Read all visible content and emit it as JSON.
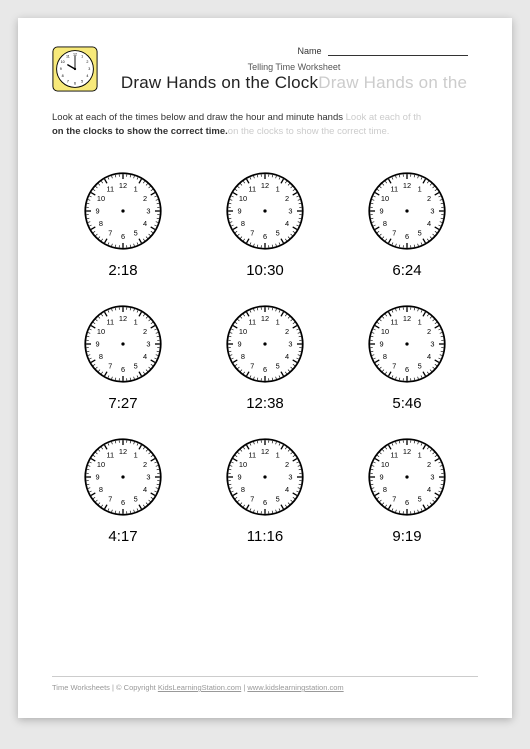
{
  "header": {
    "name_label": "Name",
    "subtitle": "Telling Time Worksheet",
    "title_main": "Draw Hands on the Clock",
    "title_ghost": "Draw Hands on the "
  },
  "logo_clock": {
    "bg_color": "#f7e97a",
    "border_color": "#000000",
    "face_color": "#ffffff",
    "hour": 10,
    "minute": 0
  },
  "instructions": {
    "line1_main": "Look at each of the times below and draw the hour and minute hands ",
    "line1_ghost": "Look at each of th",
    "line2_bold": "on the clocks to show the correct time.",
    "line2_ghost": "on the clocks to show the correct time."
  },
  "clock_style": {
    "face_fill": "#ffffff",
    "face_stroke": "#000000",
    "tick_color": "#000000",
    "num_color": "#000000",
    "center_dot": "#000000"
  },
  "clocks": [
    {
      "time": "2:18"
    },
    {
      "time": "10:30"
    },
    {
      "time": "6:24"
    },
    {
      "time": "7:27"
    },
    {
      "time": "12:38"
    },
    {
      "time": "5:46"
    },
    {
      "time": "4:17"
    },
    {
      "time": "11:16"
    },
    {
      "time": "9:19"
    }
  ],
  "footer": {
    "text_left": "Time Worksheets | © Copyright ",
    "link1": "KidsLearningStation.com",
    "sep": " | ",
    "link2": "www.kidslearningstation.com"
  }
}
